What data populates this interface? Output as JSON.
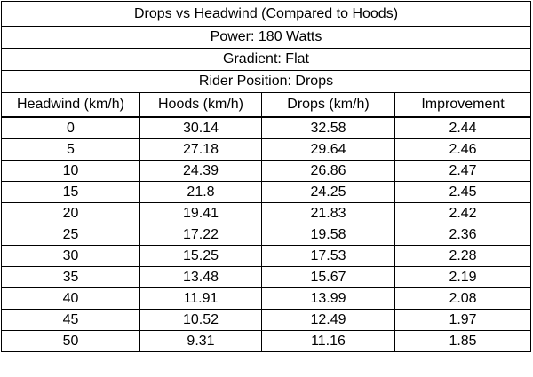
{
  "table": {
    "title": "Drops vs Headwind (Compared to Hoods)",
    "info": [
      "Power: 180 Watts",
      "Gradient: Flat",
      "Rider Position: Drops"
    ],
    "headers": [
      "Headwind (km/h)",
      "Hoods (km/h)",
      "Drops (km/h)",
      "Improvement"
    ],
    "rows": [
      [
        "0",
        "30.14",
        "32.58",
        "2.44"
      ],
      [
        "5",
        "27.18",
        "29.64",
        "2.46"
      ],
      [
        "10",
        "24.39",
        "26.86",
        "2.47"
      ],
      [
        "15",
        "21.8",
        "24.25",
        "2.45"
      ],
      [
        "20",
        "19.41",
        "21.83",
        "2.42"
      ],
      [
        "25",
        "17.22",
        "19.58",
        "2.36"
      ],
      [
        "30",
        "15.25",
        "17.53",
        "2.28"
      ],
      [
        "35",
        "13.48",
        "15.67",
        "2.19"
      ],
      [
        "40",
        "11.91",
        "13.99",
        "2.08"
      ],
      [
        "45",
        "10.52",
        "12.49",
        "1.97"
      ],
      [
        "50",
        "9.31",
        "11.16",
        "1.85"
      ]
    ]
  }
}
